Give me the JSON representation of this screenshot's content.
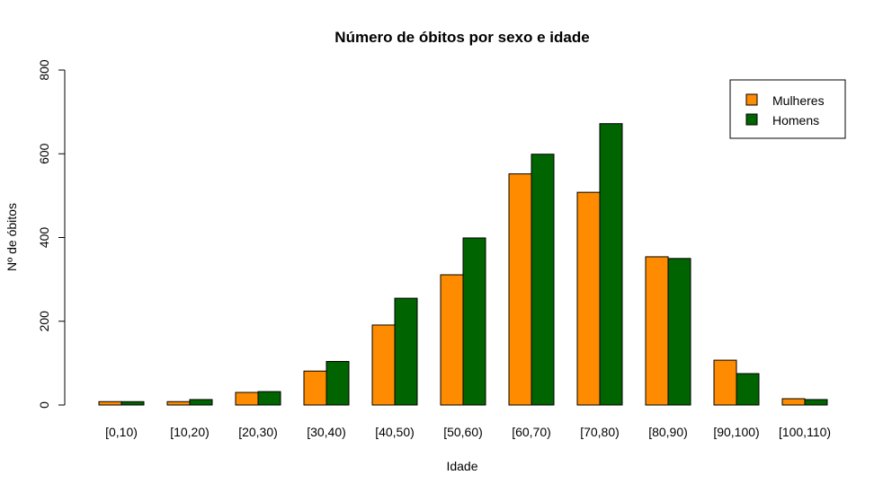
{
  "chart_data": {
    "type": "bar",
    "title": "Número de óbitos por sexo e idade",
    "xlabel": "Idade",
    "ylabel": "Nº de óbitos",
    "categories": [
      "[0,10)",
      "[10,20)",
      "[20,30)",
      "[30,40)",
      "[40,50)",
      "[50,60)",
      "[60,70)",
      "[70,80)",
      "[80,90)",
      "[90,100)",
      "[100,110)"
    ],
    "series": [
      {
        "name": "Mulheres",
        "color": "#FF8C00",
        "values": [
          8,
          8,
          30,
          81,
          191,
          311,
          552,
          508,
          354,
          107,
          15
        ]
      },
      {
        "name": "Homens",
        "color": "#006400",
        "values": [
          8,
          13,
          32,
          104,
          255,
          399,
          599,
          672,
          350,
          75,
          13
        ]
      }
    ],
    "ylim": [
      0,
      800
    ],
    "yticks": [
      0,
      200,
      400,
      600,
      800
    ],
    "grid": false,
    "legend_position": "top-right"
  }
}
